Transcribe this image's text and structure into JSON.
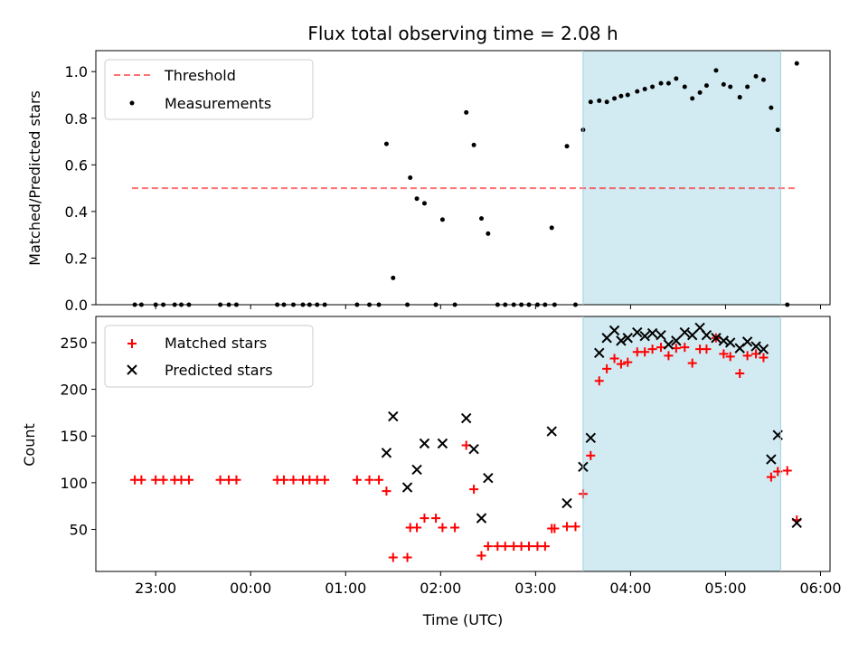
{
  "title": "Flux total observing time = 2.08 h",
  "x_axis": {
    "label": "Time (UTC)",
    "tick_labels": [
      "23:00",
      "00:00",
      "01:00",
      "02:00",
      "03:00",
      "04:00",
      "05:00",
      "06:00"
    ],
    "tick_hours": [
      23,
      24,
      25,
      26,
      27,
      28,
      29,
      30
    ],
    "range_hours": [
      22.37,
      30.1
    ]
  },
  "highlight": {
    "label": "",
    "start_hours": 27.5,
    "end_hours": 29.58,
    "color": "#add8e6"
  },
  "chart_data": [
    {
      "type": "scatter",
      "panel": "top",
      "ylabel": "Matched/Predicted stars",
      "ylim": [
        0,
        1.09
      ],
      "yticks": [
        0.0,
        0.2,
        0.4,
        0.6,
        0.8,
        1.0
      ],
      "ytick_labels": [
        "0.0",
        "0.2",
        "0.4",
        "0.6",
        "0.8",
        "1.0"
      ],
      "legend_position": "top-left",
      "threshold": {
        "name": "Threshold",
        "value": 0.5,
        "x_range": [
          22.75,
          29.75
        ],
        "color": "#ff0000",
        "style": "dashed"
      },
      "series": [
        {
          "name": "Measurements",
          "color": "#000000",
          "marker": "dot",
          "points": [
            [
              22.78,
              0.0
            ],
            [
              22.85,
              0.0
            ],
            [
              23.0,
              0.0
            ],
            [
              23.08,
              0.0
            ],
            [
              23.2,
              0.0
            ],
            [
              23.27,
              0.0
            ],
            [
              23.35,
              0.0
            ],
            [
              23.68,
              0.0
            ],
            [
              23.77,
              0.0
            ],
            [
              23.85,
              0.0
            ],
            [
              24.28,
              0.0
            ],
            [
              24.35,
              0.0
            ],
            [
              24.45,
              0.0
            ],
            [
              24.55,
              0.0
            ],
            [
              24.62,
              0.0
            ],
            [
              24.7,
              0.0
            ],
            [
              24.78,
              0.0
            ],
            [
              25.12,
              0.0
            ],
            [
              25.25,
              0.0
            ],
            [
              25.35,
              0.0
            ],
            [
              25.43,
              0.69
            ],
            [
              25.5,
              0.115
            ],
            [
              25.65,
              0.0
            ],
            [
              25.68,
              0.545
            ],
            [
              25.75,
              0.455
            ],
            [
              25.83,
              0.435
            ],
            [
              25.95,
              0.0
            ],
            [
              26.02,
              0.365
            ],
            [
              26.15,
              0.0
            ],
            [
              26.27,
              0.825
            ],
            [
              26.35,
              0.685
            ],
            [
              26.43,
              0.37
            ],
            [
              26.5,
              0.305
            ],
            [
              26.6,
              0.0
            ],
            [
              26.68,
              0.0
            ],
            [
              26.77,
              0.0
            ],
            [
              26.85,
              0.0
            ],
            [
              26.93,
              0.0
            ],
            [
              27.02,
              0.0
            ],
            [
              27.1,
              0.0
            ],
            [
              27.17,
              0.33
            ],
            [
              27.2,
              0.0
            ],
            [
              27.33,
              0.68
            ],
            [
              27.42,
              0.0
            ],
            [
              27.5,
              0.75
            ],
            [
              27.58,
              0.87
            ],
            [
              27.67,
              0.875
            ],
            [
              27.75,
              0.87
            ],
            [
              27.83,
              0.885
            ],
            [
              27.9,
              0.895
            ],
            [
              27.97,
              0.9
            ],
            [
              28.07,
              0.915
            ],
            [
              28.15,
              0.925
            ],
            [
              28.23,
              0.935
            ],
            [
              28.32,
              0.95
            ],
            [
              28.4,
              0.95
            ],
            [
              28.48,
              0.97
            ],
            [
              28.57,
              0.935
            ],
            [
              28.65,
              0.885
            ],
            [
              28.73,
              0.91
            ],
            [
              28.8,
              0.94
            ],
            [
              28.9,
              1.005
            ],
            [
              28.98,
              0.945
            ],
            [
              29.05,
              0.935
            ],
            [
              29.15,
              0.89
            ],
            [
              29.23,
              0.935
            ],
            [
              29.32,
              0.98
            ],
            [
              29.4,
              0.965
            ],
            [
              29.48,
              0.845
            ],
            [
              29.55,
              0.75
            ],
            [
              29.65,
              0.0
            ],
            [
              29.75,
              1.035
            ]
          ]
        }
      ]
    },
    {
      "type": "scatter",
      "panel": "bottom",
      "ylabel": "Count",
      "ylim": [
        5,
        278
      ],
      "yticks": [
        50,
        100,
        150,
        200,
        250
      ],
      "ytick_labels": [
        "50",
        "100",
        "150",
        "200",
        "250"
      ],
      "legend_position": "top-left",
      "series": [
        {
          "name": "Matched stars",
          "color": "#ff0000",
          "marker": "plus",
          "points": [
            [
              22.78,
              103
            ],
            [
              22.85,
              103
            ],
            [
              23.0,
              103
            ],
            [
              23.08,
              103
            ],
            [
              23.2,
              103
            ],
            [
              23.27,
              103
            ],
            [
              23.35,
              103
            ],
            [
              23.68,
              103
            ],
            [
              23.77,
              103
            ],
            [
              23.85,
              103
            ],
            [
              24.28,
              103
            ],
            [
              24.35,
              103
            ],
            [
              24.45,
              103
            ],
            [
              24.55,
              103
            ],
            [
              24.62,
              103
            ],
            [
              24.7,
              103
            ],
            [
              24.78,
              103
            ],
            [
              25.12,
              103
            ],
            [
              25.25,
              103
            ],
            [
              25.35,
              103
            ],
            [
              25.43,
              91
            ],
            [
              25.5,
              20
            ],
            [
              25.65,
              20
            ],
            [
              25.68,
              52
            ],
            [
              25.75,
              52
            ],
            [
              25.83,
              62
            ],
            [
              25.95,
              62
            ],
            [
              26.02,
              52
            ],
            [
              26.15,
              52
            ],
            [
              26.27,
              140
            ],
            [
              26.35,
              93
            ],
            [
              26.43,
              22
            ],
            [
              26.5,
              32
            ],
            [
              26.6,
              32
            ],
            [
              26.68,
              32
            ],
            [
              26.77,
              32
            ],
            [
              26.85,
              32
            ],
            [
              26.93,
              32
            ],
            [
              27.02,
              32
            ],
            [
              27.1,
              32
            ],
            [
              27.17,
              51
            ],
            [
              27.2,
              51
            ],
            [
              27.33,
              53
            ],
            [
              27.42,
              53
            ],
            [
              27.5,
              88
            ],
            [
              27.58,
              129
            ],
            [
              27.67,
              209
            ],
            [
              27.75,
              222
            ],
            [
              27.83,
              233
            ],
            [
              27.9,
              227
            ],
            [
              27.97,
              229
            ],
            [
              28.07,
              240
            ],
            [
              28.15,
              240
            ],
            [
              28.23,
              243
            ],
            [
              28.32,
              245
            ],
            [
              28.4,
              236
            ],
            [
              28.48,
              244
            ],
            [
              28.57,
              245
            ],
            [
              28.65,
              228
            ],
            [
              28.73,
              243
            ],
            [
              28.8,
              243
            ],
            [
              28.9,
              255
            ],
            [
              28.98,
              238
            ],
            [
              29.05,
              235
            ],
            [
              29.15,
              217
            ],
            [
              29.23,
              236
            ],
            [
              29.32,
              238
            ],
            [
              29.4,
              234
            ],
            [
              29.48,
              106
            ],
            [
              29.55,
              112
            ],
            [
              29.65,
              113
            ],
            [
              29.75,
              60
            ]
          ]
        },
        {
          "name": "Predicted stars",
          "color": "#000000",
          "marker": "x",
          "points": [
            [
              25.43,
              132
            ],
            [
              25.5,
              171
            ],
            [
              25.65,
              95
            ],
            [
              25.75,
              114
            ],
            [
              25.83,
              142
            ],
            [
              26.02,
              142
            ],
            [
              26.27,
              169
            ],
            [
              26.35,
              136
            ],
            [
              26.43,
              62
            ],
            [
              26.5,
              105
            ],
            [
              27.17,
              155
            ],
            [
              27.33,
              78
            ],
            [
              27.5,
              117
            ],
            [
              27.58,
              148
            ],
            [
              27.67,
              239
            ],
            [
              27.75,
              255
            ],
            [
              27.83,
              263
            ],
            [
              27.9,
              252
            ],
            [
              27.97,
              255
            ],
            [
              28.07,
              261
            ],
            [
              28.15,
              257
            ],
            [
              28.23,
              260
            ],
            [
              28.32,
              258
            ],
            [
              28.4,
              248
            ],
            [
              28.48,
              252
            ],
            [
              28.57,
              261
            ],
            [
              28.65,
              258
            ],
            [
              28.73,
              266
            ],
            [
              28.8,
              258
            ],
            [
              28.9,
              255
            ],
            [
              28.98,
              252
            ],
            [
              29.05,
              250
            ],
            [
              29.15,
              244
            ],
            [
              29.23,
              251
            ],
            [
              29.32,
              246
            ],
            [
              29.4,
              243
            ],
            [
              29.48,
              125
            ],
            [
              29.55,
              151
            ],
            [
              29.75,
              57
            ]
          ]
        }
      ]
    }
  ]
}
